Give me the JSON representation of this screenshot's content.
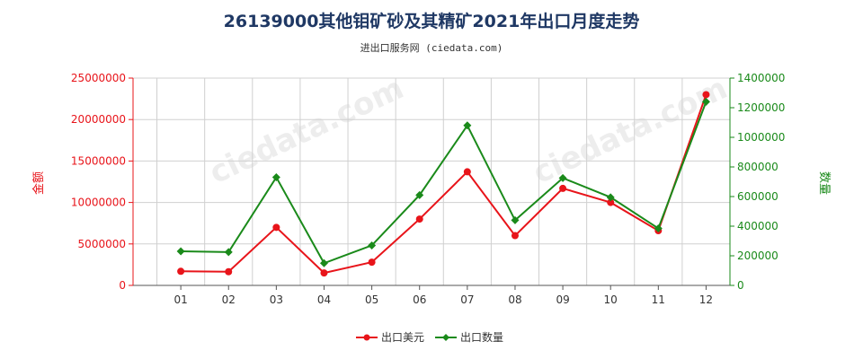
{
  "chart_data": {
    "type": "line",
    "title": "26139000其他钼矿砂及其精矿2021年出口月度走势",
    "subtitle": "进出口服务网 (ciedata.com)",
    "categories": [
      "01",
      "02",
      "03",
      "04",
      "05",
      "06",
      "07",
      "08",
      "09",
      "10",
      "11",
      "12"
    ],
    "y_left": {
      "label": "金额",
      "range": [
        0,
        25000000
      ],
      "ticks": [
        "0",
        "5000000",
        "10000000",
        "15000000",
        "20000000",
        "25000000"
      ],
      "color": "#e8141a"
    },
    "y_right": {
      "label": "数量",
      "range": [
        0,
        1400000
      ],
      "ticks": [
        "0",
        "200000",
        "400000",
        "600000",
        "800000",
        "1000000",
        "1200000",
        "1400000"
      ],
      "color": "#1a8a1a"
    },
    "series": [
      {
        "name": "出口美元",
        "axis": "left",
        "color": "#e8141a",
        "values": [
          1700000,
          1650000,
          7000000,
          1500000,
          2800000,
          8000000,
          13700000,
          6000000,
          11700000,
          10000000,
          6600000,
          23000000
        ]
      },
      {
        "name": "出口数量",
        "axis": "right",
        "color": "#1a8a1a",
        "values": [
          230000,
          225000,
          730000,
          150000,
          270000,
          610000,
          1080000,
          440000,
          725000,
          595000,
          385000,
          1240000
        ]
      }
    ],
    "grid": true,
    "legend_position": "bottom-center"
  }
}
